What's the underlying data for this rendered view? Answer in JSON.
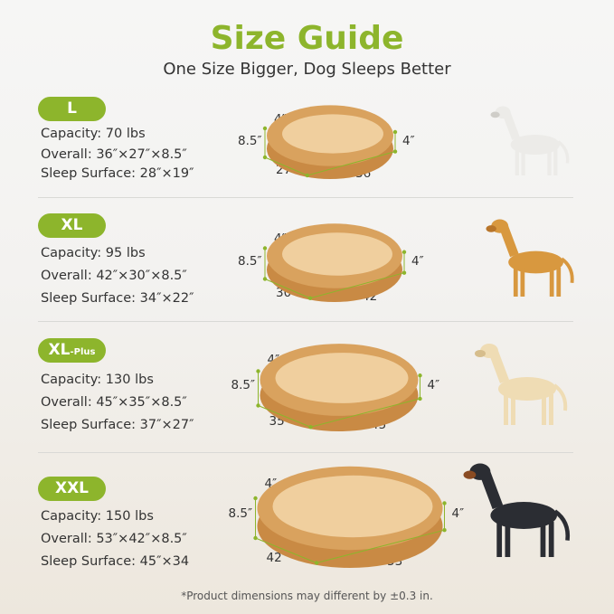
{
  "header": {
    "title": "Size Guide",
    "subtitle": "One Size Bigger, Dog Sleeps Better"
  },
  "colors": {
    "accent": "#8db52c",
    "bed_outer": "#d9a25e",
    "bed_inner": "#f0cf9e"
  },
  "sizes": [
    {
      "label": "L",
      "suffix": "",
      "capacity": "Capacity: 70 lbs",
      "overall": "Overall: 36″×27″×8.5″",
      "sleep": "Sleep Surface: 28″×19″",
      "dims": {
        "bolster": "4″",
        "height": "8.5″",
        "side": "4″",
        "width": "27″",
        "length": "36″"
      },
      "dog": "bulldog-white"
    },
    {
      "label": "XL",
      "suffix": "",
      "capacity": "Capacity: 95 lbs",
      "overall": "Overall: 42″×30″×8.5″",
      "sleep": "Sleep Surface: 34″×22″",
      "dims": {
        "bolster": "4″",
        "height": "8.5″",
        "side": "4″",
        "width": "30″",
        "length": "42″"
      },
      "dog": "golden-retriever"
    },
    {
      "label": "XL",
      "suffix": "-Plus",
      "capacity": "Capacity: 130 lbs",
      "overall": "Overall: 45″×35″×8.5″",
      "sleep": "Sleep Surface: 37″×27″",
      "dims": {
        "bolster": "4″",
        "height": "8.5″",
        "side": "4″",
        "width": "35″",
        "length": "45″"
      },
      "dog": "labrador"
    },
    {
      "label": "XXL",
      "suffix": "",
      "capacity": "Capacity: 150 lbs",
      "overall": "Overall: 53″×42″×8.5″",
      "sleep": "Sleep Surface: 45″×34",
      "dims": {
        "bolster": "4″",
        "height": "8.5″",
        "side": "4″",
        "width": "42″",
        "length": "53″"
      },
      "dog": "doberman"
    }
  ],
  "footnote": "*Product dimensions may different by ±0.3 in."
}
